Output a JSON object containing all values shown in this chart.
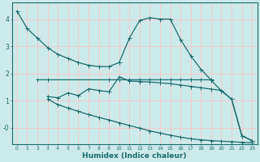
{
  "xlabel": "Humidex (Indice chaleur)",
  "bg_color": "#cceaea",
  "grid_color": "#f5c8c8",
  "line_color": "#1a6b6b",
  "x_ticks": [
    0,
    1,
    2,
    3,
    4,
    5,
    6,
    7,
    8,
    9,
    10,
    11,
    12,
    13,
    14,
    15,
    16,
    17,
    18,
    19,
    20,
    21,
    22,
    23
  ],
  "ylim": [
    -0.6,
    4.6
  ],
  "xlim": [
    -0.5,
    23.5
  ],
  "line1_x": [
    0,
    1,
    2,
    3,
    4,
    5,
    6,
    7,
    8,
    9,
    10,
    11,
    12,
    13,
    14,
    15,
    16,
    17,
    18,
    19,
    20,
    21,
    22,
    23
  ],
  "line1_y": [
    4.3,
    3.65,
    3.3,
    2.95,
    2.7,
    2.55,
    2.4,
    2.3,
    2.25,
    2.25,
    2.4,
    3.3,
    3.95,
    4.05,
    4.0,
    4.0,
    3.25,
    2.65,
    2.15,
    1.75,
    1.35,
    1.05,
    -0.3,
    -0.48
  ],
  "line2_x": [
    2,
    3,
    9,
    10,
    11,
    12,
    13,
    14,
    15,
    16,
    17,
    18,
    19
  ],
  "line2_y": [
    1.78,
    1.78,
    1.78,
    1.78,
    1.78,
    1.78,
    1.78,
    1.78,
    1.78,
    1.78,
    1.78,
    1.78,
    1.78
  ],
  "line3_x": [
    3,
    4,
    5,
    6,
    7,
    8,
    9,
    10,
    11,
    12,
    13,
    14,
    15,
    16,
    17,
    18,
    19,
    20,
    21,
    22,
    23
  ],
  "line3_y": [
    1.15,
    1.1,
    1.28,
    1.18,
    1.43,
    1.37,
    1.32,
    1.87,
    1.72,
    1.7,
    1.68,
    1.65,
    1.62,
    1.57,
    1.52,
    1.47,
    1.42,
    1.37,
    1.05,
    -0.3,
    -0.48
  ],
  "line4_x": [
    3,
    4,
    5,
    6,
    7,
    8,
    9,
    10,
    11,
    12,
    13,
    14,
    15,
    16,
    17,
    18,
    19,
    20,
    21,
    22,
    23
  ],
  "line4_y": [
    1.05,
    0.85,
    0.72,
    0.6,
    0.48,
    0.38,
    0.28,
    0.18,
    0.08,
    -0.02,
    -0.12,
    -0.2,
    -0.28,
    -0.35,
    -0.41,
    -0.45,
    -0.48,
    -0.5,
    -0.52,
    -0.54,
    -0.56
  ]
}
